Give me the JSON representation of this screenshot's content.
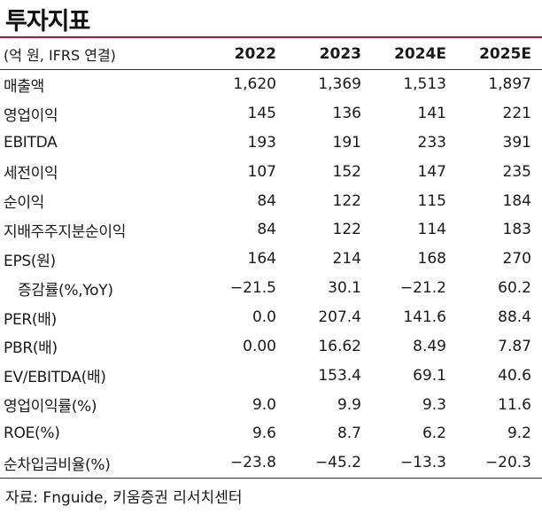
{
  "title": "투자지표",
  "header": {
    "label": "(억 원, IFRS 연결)",
    "years": [
      "2022",
      "2023",
      "2024E",
      "2025E"
    ]
  },
  "rows": [
    {
      "label": "매출액",
      "values": [
        "1,620",
        "1,369",
        "1,513",
        "1,897"
      ]
    },
    {
      "label": "영업이익",
      "values": [
        "145",
        "136",
        "141",
        "221"
      ]
    },
    {
      "label": "EBITDA",
      "values": [
        "193",
        "191",
        "233",
        "391"
      ]
    },
    {
      "label": "세전이익",
      "values": [
        "107",
        "152",
        "147",
        "235"
      ]
    },
    {
      "label": "순이익",
      "values": [
        "84",
        "122",
        "115",
        "184"
      ]
    },
    {
      "label": "지배주주지분순이익",
      "values": [
        "84",
        "122",
        "114",
        "183"
      ]
    },
    {
      "label": "EPS(원)",
      "values": [
        "164",
        "214",
        "168",
        "270"
      ]
    },
    {
      "label": "증감률(%,YoY)",
      "values": [
        "−21.5",
        "30.1",
        "−21.2",
        "60.2"
      ]
    },
    {
      "label": "PER(배)",
      "values": [
        "0.0",
        "207.4",
        "141.6",
        "88.4"
      ]
    },
    {
      "label": "PBR(배)",
      "values": [
        "0.00",
        "16.62",
        "8.49",
        "7.87"
      ]
    },
    {
      "label": "EV/EBITDA(배)",
      "values": [
        "",
        "153.4",
        "69.1",
        "40.6"
      ]
    },
    {
      "label": "영업이익률(%)",
      "values": [
        "9.0",
        "9.9",
        "9.3",
        "11.6"
      ]
    },
    {
      "label": "ROE(%)",
      "values": [
        "9.6",
        "8.7",
        "6.2",
        "9.2"
      ]
    },
    {
      "label": "순차입금비율(%)",
      "values": [
        "−23.8",
        "−45.2",
        "−13.3",
        "−20.3"
      ]
    }
  ],
  "source": "자료: Fnguide, 키움증권 리서치센터",
  "colors": {
    "accent_rule": "#c8102e",
    "text": "#1a1a1a"
  }
}
